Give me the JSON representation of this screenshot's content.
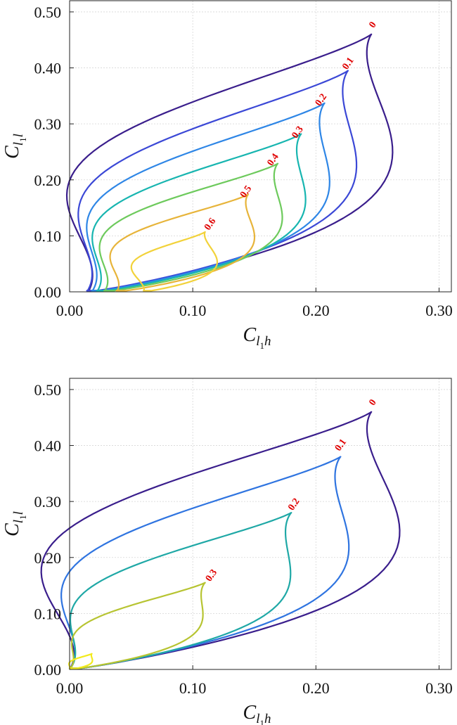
{
  "chart_data": [
    {
      "type": "contour",
      "xlabel": {
        "main": "C",
        "sub": "l",
        "subsub": "1",
        "tail": "h"
      },
      "ylabel": {
        "main": "C",
        "sub": "l",
        "subsub": "1",
        "tail": "l"
      },
      "xlim": [
        0,
        0.31
      ],
      "ylim": [
        0,
        0.52
      ],
      "xticks": [
        "0.00",
        "0.10",
        "0.20",
        "0.30"
      ],
      "xtick_values": [
        0,
        0.1,
        0.2,
        0.3
      ],
      "yticks": [
        "0.00",
        "0.10",
        "0.20",
        "0.30",
        "0.40",
        "0.50"
      ],
      "ytick_values": [
        0,
        0.1,
        0.2,
        0.3,
        0.4,
        0.5
      ],
      "grid": true,
      "levels": [
        {
          "label": "0",
          "color": "#3a1e8c",
          "x0": 0.015,
          "tip": [
            0.245,
            0.46
          ],
          "w": 0.115,
          "b": 0.72,
          "label_at": [
            0.248,
            0.474
          ]
        },
        {
          "label": "0.1",
          "color": "#3b48d6",
          "x0": 0.014,
          "tip": [
            0.226,
            0.395
          ],
          "w": 0.095,
          "b": 0.75,
          "label_at": [
            0.228,
            0.405
          ]
        },
        {
          "label": "0.2",
          "color": "#2e86e6",
          "x0": 0.018,
          "tip": [
            0.207,
            0.337
          ],
          "w": 0.082,
          "b": 0.76,
          "label_at": [
            0.206,
            0.34
          ]
        },
        {
          "label": "0.3",
          "color": "#17b5b0",
          "x0": 0.022,
          "tip": [
            0.188,
            0.282
          ],
          "w": 0.072,
          "b": 0.77,
          "label_at": [
            0.187,
            0.282
          ]
        },
        {
          "label": "0.4",
          "color": "#6dca5c",
          "x0": 0.028,
          "tip": [
            0.169,
            0.229
          ],
          "w": 0.062,
          "b": 0.78,
          "label_at": [
            0.167,
            0.233
          ]
        },
        {
          "label": "0.5",
          "color": "#e7b43a",
          "x0": 0.038,
          "tip": [
            0.145,
            0.174
          ],
          "w": 0.05,
          "b": 0.8,
          "label_at": [
            0.145,
            0.176
          ]
        },
        {
          "label": "0.6",
          "color": "#f2d23a",
          "x0": 0.06,
          "tip": [
            0.11,
            0.107
          ],
          "w": 0.032,
          "b": 0.82,
          "label_at": [
            0.116,
            0.118
          ]
        }
      ]
    },
    {
      "type": "contour",
      "xlabel": {
        "main": "C",
        "sub": "l",
        "subsub": "1",
        "tail": "h"
      },
      "ylabel": {
        "main": "C",
        "sub": "l",
        "subsub": "1",
        "tail": "l"
      },
      "xlim": [
        0,
        0.31
      ],
      "ylim": [
        0,
        0.52
      ],
      "xticks": [
        "0.00",
        "0.10",
        "0.20",
        "0.30"
      ],
      "xtick_values": [
        0,
        0.1,
        0.2,
        0.3
      ],
      "yticks": [
        "0.00",
        "0.10",
        "0.20",
        "0.30",
        "0.40",
        "0.50"
      ],
      "ytick_values": [
        0,
        0.1,
        0.2,
        0.3,
        0.4,
        0.5
      ],
      "grid": true,
      "levels": [
        {
          "label": "0",
          "color": "#3a1e8c",
          "x0": 0.0,
          "tip": [
            0.245,
            0.46
          ],
          "w": 0.128,
          "b": 0.72,
          "label_at": [
            0.248,
            0.474
          ]
        },
        {
          "label": "0.1",
          "color": "#2f74e0",
          "x0": 0.0,
          "tip": [
            0.22,
            0.38
          ],
          "w": 0.098,
          "b": 0.74,
          "label_at": [
            0.222,
            0.398
          ]
        },
        {
          "label": "0.2",
          "color": "#1fa8a6",
          "x0": 0.0,
          "tip": [
            0.18,
            0.28
          ],
          "w": 0.072,
          "b": 0.76,
          "label_at": [
            0.184,
            0.292
          ]
        },
        {
          "label": "0.3",
          "color": "#b7c432",
          "x0": 0.0,
          "tip": [
            0.11,
            0.155
          ],
          "w": 0.042,
          "b": 0.78,
          "label_at": [
            0.117,
            0.165
          ]
        },
        {
          "label": "",
          "color": "#f2ea1c",
          "x0": 0.0,
          "tip": [
            0.018,
            0.028
          ],
          "w": 0.008,
          "b": 0.8,
          "label_at": null
        }
      ]
    }
  ]
}
